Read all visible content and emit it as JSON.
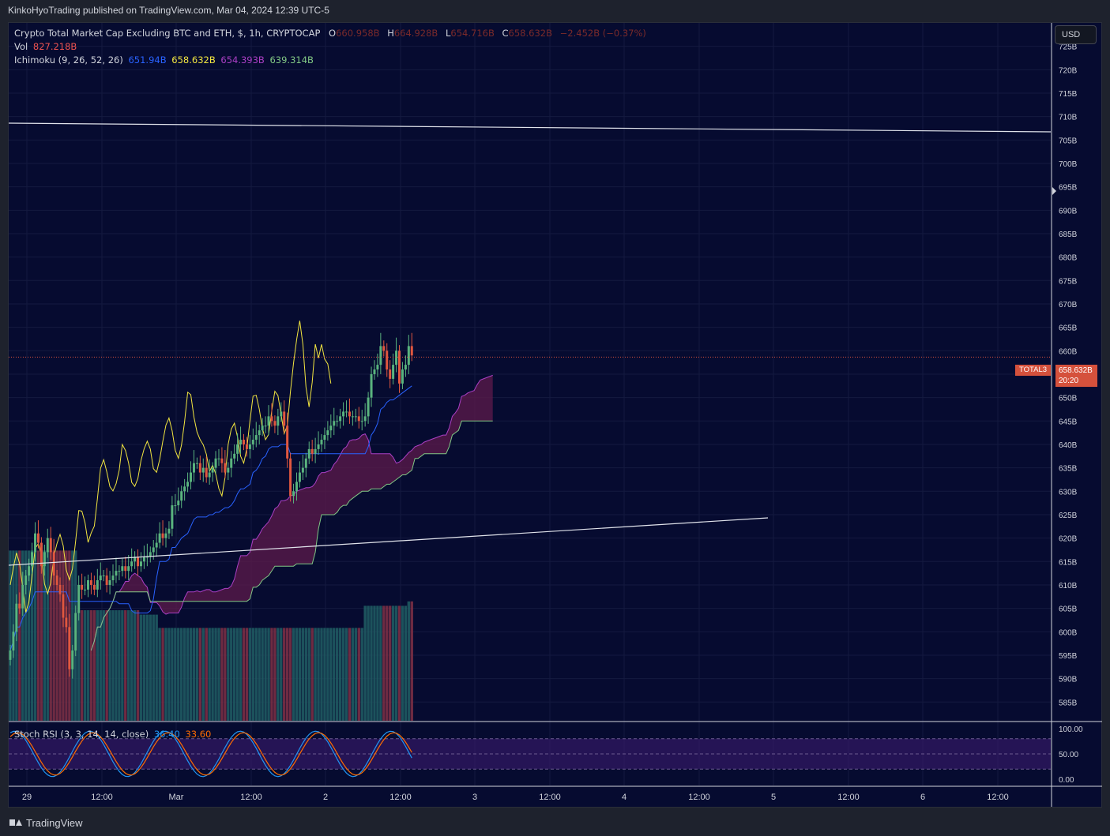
{
  "header": {
    "published_by": "KinkoHyoTrading published on TradingView.com, Mar 04, 2024 12:39 UTC-5"
  },
  "legend": {
    "symbol_line": "Crypto Total Market Cap Excluding BTC and ETH, $, 1h, CRYPTOCAP",
    "ohlc": {
      "o_label": "O",
      "o_value": "660.958B",
      "h_label": "H",
      "h_value": "664.928B",
      "l_label": "L",
      "l_value": "654.716B",
      "c_label": "C",
      "c_value": "658.632B",
      "change": "−2.452B (−0.37%)"
    },
    "vol_label": "Vol",
    "vol_value": "827.218B",
    "ichimoku_label": "Ichimoku (9, 26, 52, 26)",
    "ichimoku_values": [
      "651.94B",
      "658.632B",
      "654.393B",
      "639.314B"
    ],
    "stoch_label": "Stoch RSI (3, 3, 14, 14, close)",
    "stoch_k": "36.40",
    "stoch_d": "33.60"
  },
  "toolbar": {
    "currency_button": "USD"
  },
  "price_tag": {
    "symbol": "TOTAL3",
    "price": "658.632B",
    "countdown": "20:20"
  },
  "footer": {
    "brand": "TradingView"
  },
  "colors": {
    "background": "#060b30",
    "up": "#26a69a",
    "down": "#ef5350",
    "tenkan": "#2962ff",
    "kijun": "#f2e640",
    "span_a": "#aa3fc4",
    "span_b": "#81c784",
    "cloud": "#5d1b4b",
    "stoch_k": "#2196f3",
    "stoch_d": "#ff6d00"
  },
  "chart_data": {
    "type": "candlestick",
    "symbol": "TOTAL3",
    "timeframe": "1h",
    "y_axis": {
      "range": [
        581,
        730
      ],
      "ticks": [
        "725B",
        "720B",
        "715B",
        "710B",
        "705B",
        "700B",
        "695B",
        "690B",
        "685B",
        "680B",
        "675B",
        "670B",
        "665B",
        "660B",
        "655B",
        "650B",
        "645B",
        "640B",
        "635B",
        "630B",
        "625B",
        "620B",
        "615B",
        "610B",
        "605B",
        "600B",
        "595B",
        "590B",
        "585B"
      ]
    },
    "x_axis": {
      "ticks": [
        "29",
        "12:00",
        "Mar",
        "12:00",
        "2",
        "12:00",
        "3",
        "12:00",
        "4",
        "12:00",
        "5",
        "12:00",
        "6",
        "12:00"
      ]
    },
    "rsi_axis": {
      "ticks": [
        "100.00",
        "50.00",
        "0.00"
      ],
      "range": [
        0,
        100
      ],
      "bands": [
        80,
        20
      ]
    },
    "trendlines": [
      {
        "from": [
          "Feb 28 16:00",
          712.0
        ],
        "to": [
          "Mar 6 20:00",
          710.3
        ]
      },
      {
        "from": [
          "Feb 28 16:00",
          616.5
        ],
        "to": [
          "Mar 4 16:00",
          626.5
        ]
      }
    ],
    "last_price": 658.632,
    "candle_closes": [
      596,
      600,
      606,
      605,
      610,
      612,
      614,
      617,
      621,
      619,
      614,
      617,
      620,
      617,
      612,
      610,
      608,
      603,
      601,
      592,
      596,
      604,
      610,
      609,
      609,
      611,
      610,
      609,
      611,
      612,
      612,
      610,
      611,
      612,
      613,
      613,
      614,
      613,
      614,
      615,
      616,
      614,
      615,
      616,
      616,
      617,
      618,
      619,
      621,
      620,
      621,
      622,
      627,
      627,
      628,
      630,
      631,
      632,
      634,
      636,
      636,
      634,
      635,
      633,
      634,
      635,
      637,
      637,
      636,
      634,
      635,
      637,
      638,
      640,
      641,
      640,
      639,
      640,
      641,
      642,
      643,
      644,
      644,
      646,
      645,
      644,
      646,
      647,
      644,
      637,
      629,
      630,
      632,
      634,
      635,
      637,
      639,
      638,
      639,
      640,
      641,
      642,
      643,
      644,
      645,
      645,
      646,
      647,
      647,
      646,
      646,
      646,
      645,
      645,
      646,
      650,
      655,
      656,
      657,
      661,
      660,
      656,
      654,
      657,
      660,
      653,
      656,
      657,
      661,
      659
    ],
    "volume_heights": [
      0.77,
      0.77,
      0.77,
      0.77,
      0.77,
      0.77,
      0.77,
      0.77,
      0.77,
      0.77,
      0.77,
      0.77,
      0.77,
      0.77,
      0.77,
      0.77,
      0.77,
      0.77,
      0.77,
      0.77,
      0.77,
      0.77,
      0.5,
      0.5,
      0.5,
      0.5,
      0.5,
      0.5,
      0.5,
      0.5,
      0.5,
      0.5,
      0.5,
      0.5,
      0.5,
      0.5,
      0.5,
      0.5,
      0.5,
      0.5,
      0.5,
      0.5,
      0.48,
      0.48,
      0.48,
      0.48,
      0.48,
      0.48,
      0.42,
      0.42,
      0.42,
      0.42,
      0.42,
      0.42,
      0.42,
      0.42,
      0.42,
      0.42,
      0.42,
      0.42,
      0.42,
      0.42,
      0.42,
      0.42,
      0.42,
      0.42,
      0.42,
      0.42,
      0.42,
      0.42,
      0.42,
      0.42,
      0.42,
      0.42,
      0.42,
      0.42,
      0.42,
      0.42,
      0.42,
      0.42,
      0.42,
      0.42,
      0.42,
      0.42,
      0.42,
      0.42,
      0.42,
      0.42,
      0.42,
      0.42,
      0.42,
      0.42,
      0.42,
      0.42,
      0.42,
      0.42,
      0.42,
      0.42,
      0.42,
      0.42,
      0.42,
      0.42,
      0.42,
      0.42,
      0.42,
      0.42,
      0.42,
      0.42,
      0.42,
      0.42,
      0.42,
      0.42,
      0.42,
      0.42,
      0.52,
      0.52,
      0.52,
      0.52,
      0.52,
      0.52,
      0.52,
      0.52,
      0.52,
      0.52,
      0.52,
      0.52,
      0.52,
      0.52,
      0.54,
      0.54,
      0.54,
      0.42
    ]
  }
}
